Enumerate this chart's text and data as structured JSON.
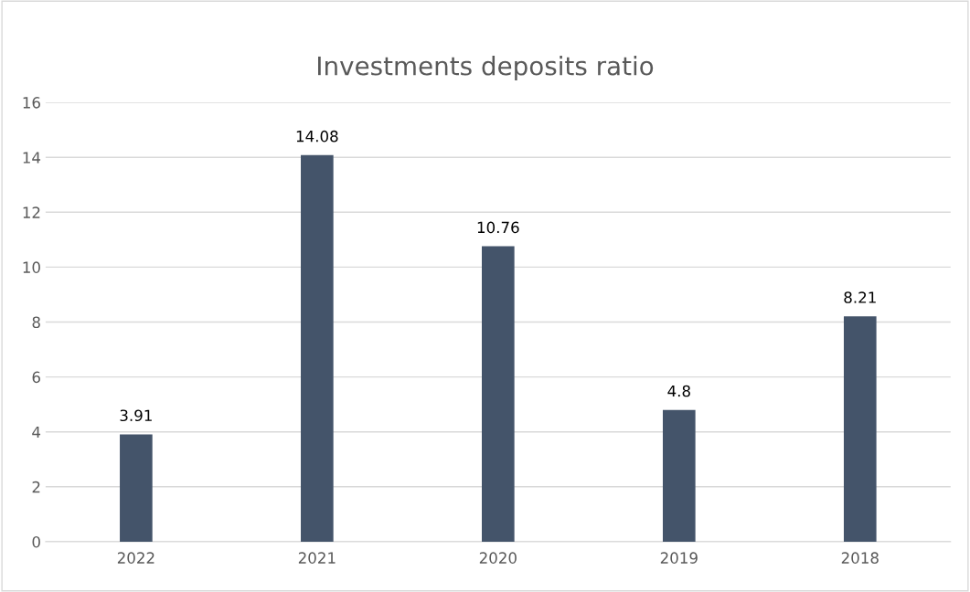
{
  "chart_data": {
    "type": "bar",
    "title": "Investments deposits ratio",
    "categories": [
      "2022",
      "2021",
      "2020",
      "2019",
      "2018"
    ],
    "values": [
      3.91,
      14.08,
      10.76,
      4.8,
      8.21
    ],
    "color": "#44546a",
    "ylim": [
      0,
      16
    ],
    "yticks": [
      0,
      2,
      4,
      6,
      8,
      10,
      12,
      14,
      16
    ],
    "grid": "y",
    "data_labels": true
  }
}
